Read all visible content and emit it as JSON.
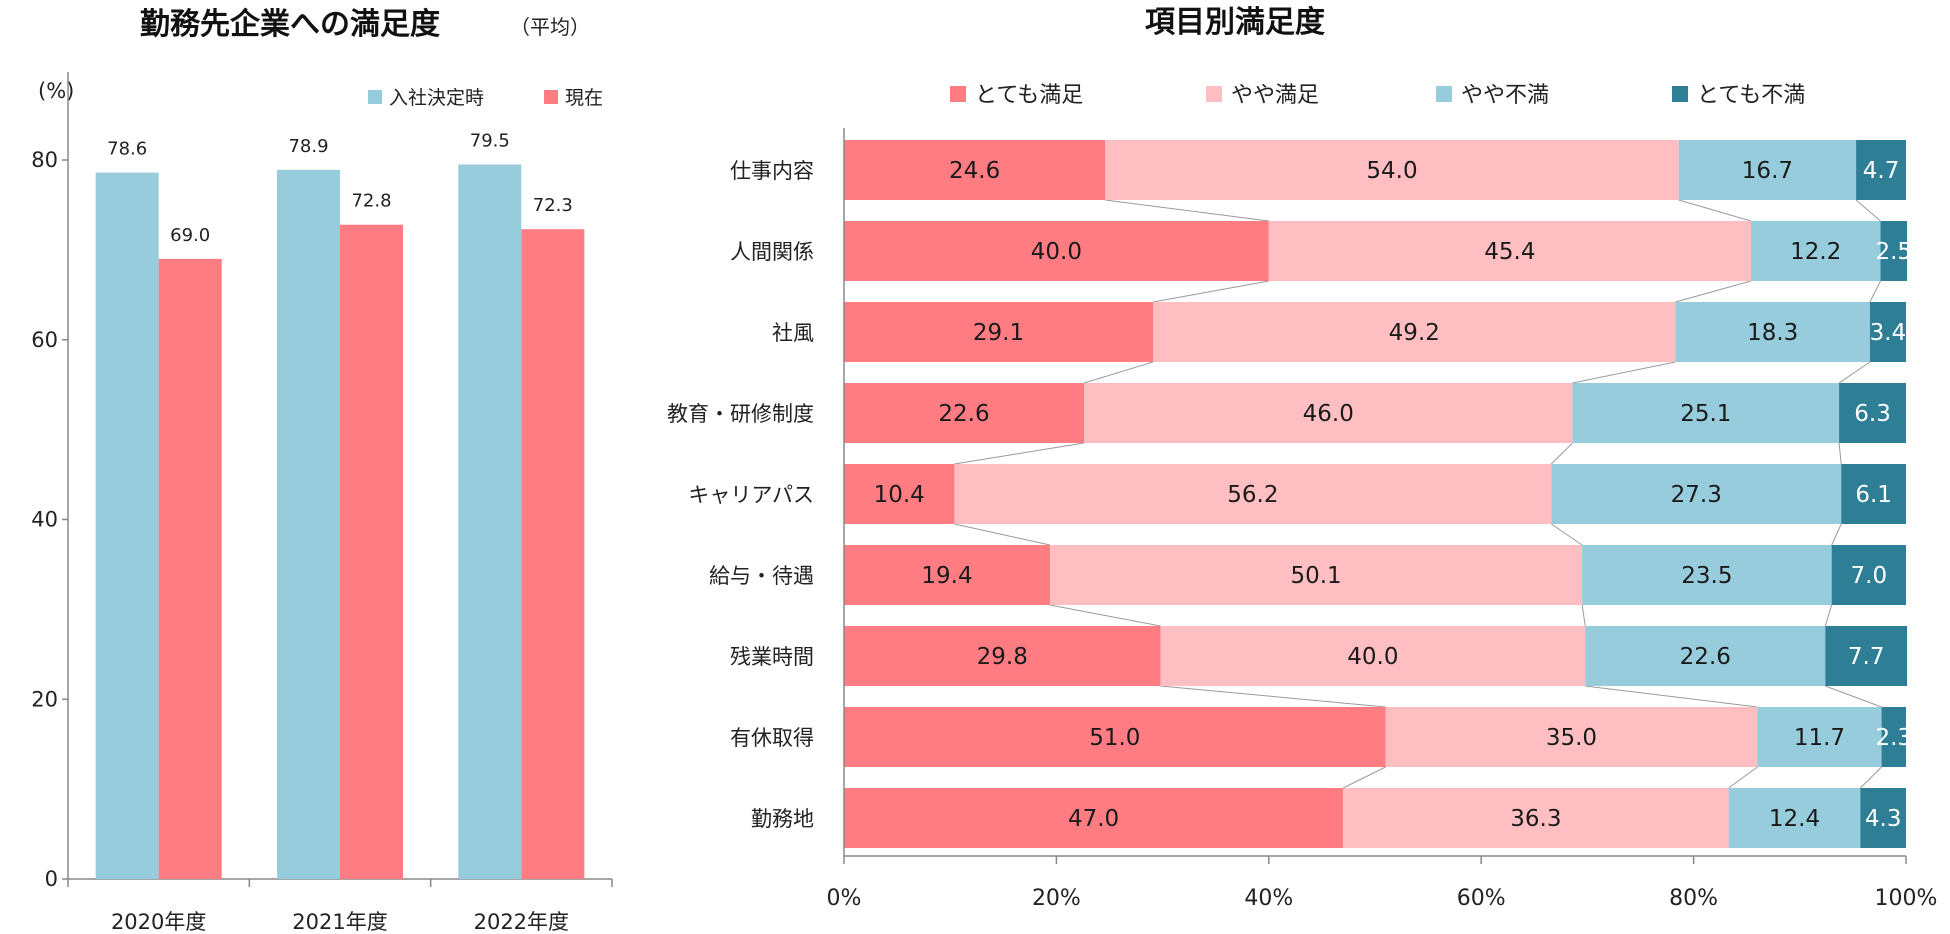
{
  "colors": {
    "teal_light": "#96CCDC",
    "salmon": "#FF7C82",
    "pink": "#FFBFC2",
    "blue_light": "#96CCDC",
    "teal_dark": "#2E7E96"
  },
  "chart_data": [
    {
      "type": "bar",
      "title": "勤務先企業への満足度",
      "subtitle": "（平均）",
      "ylabel": "(%)",
      "ylim": [
        0,
        80
      ],
      "yticks": [
        "0",
        "20",
        "40",
        "60",
        "80"
      ],
      "categories": [
        "2020年度",
        "2021年度",
        "2022年度"
      ],
      "series": [
        {
          "name": "入社決定時",
          "color": "#96CCDC",
          "values": [
            78.6,
            78.9,
            79.5
          ],
          "labels": [
            "78.6",
            "78.9",
            "79.5"
          ]
        },
        {
          "name": "現在",
          "color": "#FF7C82",
          "values": [
            69.0,
            72.8,
            72.3
          ],
          "labels": [
            "69.0",
            "72.8",
            "72.3"
          ]
        }
      ],
      "legend_position": "top-right"
    },
    {
      "type": "bar",
      "orientation": "horizontal-stacked-100",
      "title": "項目別満足度",
      "xlim": [
        0,
        100
      ],
      "xticks": [
        "0%",
        "20%",
        "40%",
        "60%",
        "80%",
        "100%"
      ],
      "categories": [
        "仕事内容",
        "人間関係",
        "社風",
        "教育・研修制度",
        "キャリアパス",
        "給与・待遇",
        "残業時間",
        "有休取得",
        "勤務地"
      ],
      "series": [
        {
          "name": "とても満足",
          "color": "#FF7C82",
          "values": [
            24.6,
            40.0,
            29.1,
            22.6,
            10.4,
            19.4,
            29.8,
            51.0,
            47.0
          ],
          "labels": [
            "24.6",
            "40.0",
            "29.1",
            "22.6",
            "10.4",
            "19.4",
            "29.8",
            "51.0",
            "47.0"
          ]
        },
        {
          "name": "やや満足",
          "color": "#FFBFC2",
          "values": [
            54.0,
            45.4,
            49.2,
            46.0,
            56.2,
            50.1,
            40.0,
            35.0,
            36.3
          ],
          "labels": [
            "54.0",
            "45.4",
            "49.2",
            "46.0",
            "56.2",
            "50.1",
            "40.0",
            "35.0",
            "36.3"
          ]
        },
        {
          "name": "やや不満",
          "color": "#96CCDC",
          "values": [
            16.7,
            12.2,
            18.3,
            25.1,
            27.3,
            23.5,
            22.6,
            11.7,
            12.4
          ],
          "labels": [
            "16.7",
            "12.2",
            "18.3",
            "25.1",
            "27.3",
            "23.5",
            "22.6",
            "11.7",
            "12.4"
          ]
        },
        {
          "name": "とても不満",
          "color": "#2E7E96",
          "values": [
            4.7,
            2.5,
            3.4,
            6.3,
            6.1,
            7.0,
            7.7,
            2.3,
            4.3
          ],
          "labels": [
            "4.7",
            "2.5",
            "3.4",
            "6.3",
            "6.1",
            "7.0",
            "7.7",
            "2.3",
            "4.3"
          ]
        }
      ],
      "legend_position": "top"
    }
  ]
}
